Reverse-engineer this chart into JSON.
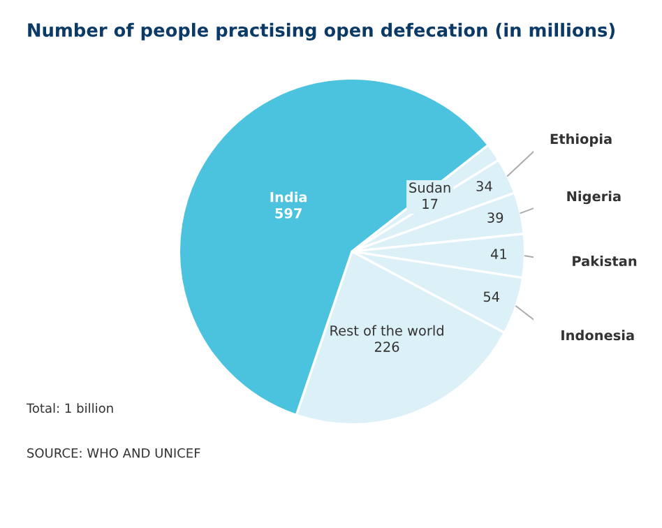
{
  "chart_data": {
    "type": "pie",
    "title": "Number of people practising open defecation (in millions)",
    "categories": [
      "Sudan",
      "Ethiopia",
      "Nigeria",
      "Pakistan",
      "Indonesia",
      "Rest of the world",
      "India"
    ],
    "values": [
      17,
      34,
      39,
      41,
      54,
      226,
      597
    ],
    "colors": [
      "#dbf0f7",
      "#dbf0f7",
      "#dbf0f7",
      "#dbf0f7",
      "#dbf0f7",
      "#dbf0f7",
      "#4bc3de"
    ],
    "data_labels": true,
    "annotations": [
      "Total: 1 billion",
      "SOURCE: WHO AND UNICEF"
    ]
  }
}
